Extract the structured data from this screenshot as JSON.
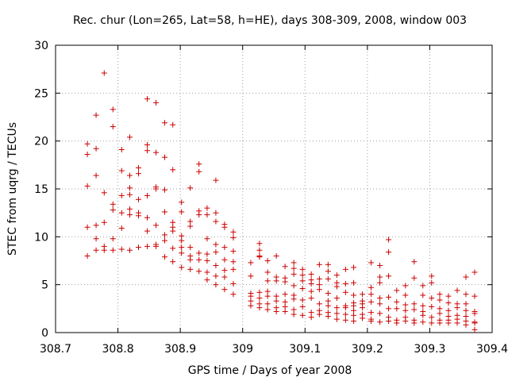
{
  "chart_data": {
    "type": "scatter",
    "title": "Rec. chur (Lon=265, Lat=58, h=HE), days 308-309, 2008, window 003",
    "xlabel": "GPS time / Days of year 2008",
    "ylabel": "STEC from uqrg / TECUs",
    "xlim": [
      308.7,
      309.4
    ],
    "ylim": [
      0,
      30
    ],
    "x_ticks": [
      "308.7",
      "308.8",
      "308.9",
      "309",
      "309.1",
      "309.2",
      "309.3",
      "309.4"
    ],
    "y_ticks": [
      "0",
      "5",
      "10",
      "15",
      "20",
      "25",
      "30"
    ],
    "grid": true,
    "marker": "plus",
    "marker_color": "#cc0000",
    "series": [
      {
        "points": [
          [
            308.751,
            19.7
          ],
          [
            308.751,
            18.6
          ],
          [
            308.751,
            15.3
          ],
          [
            308.751,
            11.0
          ],
          [
            308.751,
            8.0
          ],
          [
            308.765,
            22.7
          ],
          [
            308.765,
            19.2
          ],
          [
            308.765,
            16.4
          ],
          [
            308.765,
            11.2
          ],
          [
            308.765,
            9.8
          ],
          [
            308.765,
            8.6
          ],
          [
            308.778,
            27.1
          ],
          [
            308.778,
            14.6
          ],
          [
            308.778,
            11.5
          ],
          [
            308.778,
            9.0
          ],
          [
            308.778,
            8.6
          ],
          [
            308.792,
            23.3
          ],
          [
            308.792,
            21.5
          ],
          [
            308.792,
            13.4
          ],
          [
            308.792,
            12.8
          ],
          [
            308.792,
            9.8
          ],
          [
            308.792,
            8.6
          ],
          [
            308.806,
            19.1
          ],
          [
            308.806,
            16.9
          ],
          [
            308.806,
            14.3
          ],
          [
            308.806,
            12.5
          ],
          [
            308.806,
            10.9
          ],
          [
            308.806,
            8.7
          ],
          [
            308.819,
            20.4
          ],
          [
            308.819,
            16.4
          ],
          [
            308.819,
            15.1
          ],
          [
            308.819,
            14.4
          ],
          [
            308.819,
            12.9
          ],
          [
            308.819,
            12.3
          ],
          [
            308.819,
            8.6
          ],
          [
            308.833,
            17.2
          ],
          [
            308.833,
            16.6
          ],
          [
            308.833,
            13.9
          ],
          [
            308.833,
            12.5
          ],
          [
            308.833,
            12.2
          ],
          [
            308.833,
            8.9
          ],
          [
            308.847,
            24.4
          ],
          [
            308.847,
            19.6
          ],
          [
            308.847,
            19.0
          ],
          [
            308.847,
            14.3
          ],
          [
            308.847,
            12.0
          ],
          [
            308.847,
            10.6
          ],
          [
            308.847,
            9.0
          ],
          [
            308.861,
            24.0
          ],
          [
            308.861,
            18.8
          ],
          [
            308.861,
            15.2
          ],
          [
            308.861,
            15.0
          ],
          [
            308.861,
            11.2
          ],
          [
            308.861,
            9.2
          ],
          [
            308.861,
            9.0
          ],
          [
            308.875,
            21.9
          ],
          [
            308.875,
            18.3
          ],
          [
            308.875,
            14.9
          ],
          [
            308.875,
            12.6
          ],
          [
            308.875,
            10.2
          ],
          [
            308.875,
            9.6
          ],
          [
            308.875,
            7.9
          ],
          [
            308.888,
            21.7
          ],
          [
            308.888,
            17.0
          ],
          [
            308.888,
            11.5
          ],
          [
            308.888,
            11.0
          ],
          [
            308.888,
            10.6
          ],
          [
            308.888,
            8.8
          ],
          [
            308.888,
            7.4
          ],
          [
            308.902,
            13.6
          ],
          [
            308.902,
            12.6
          ],
          [
            308.902,
            10.1
          ],
          [
            308.902,
            9.6
          ],
          [
            308.902,
            8.9
          ],
          [
            308.902,
            8.3
          ],
          [
            308.902,
            6.8
          ],
          [
            308.916,
            15.1
          ],
          [
            308.916,
            11.6
          ],
          [
            308.916,
            11.1
          ],
          [
            308.916,
            8.9
          ],
          [
            308.916,
            8.0
          ],
          [
            308.916,
            7.6
          ],
          [
            308.916,
            6.6
          ],
          [
            308.93,
            17.6
          ],
          [
            308.93,
            16.8
          ],
          [
            308.93,
            12.7
          ],
          [
            308.93,
            12.3
          ],
          [
            308.93,
            8.3
          ],
          [
            308.93,
            7.6
          ],
          [
            308.93,
            6.4
          ],
          [
            308.943,
            13.0
          ],
          [
            308.943,
            12.3
          ],
          [
            308.943,
            9.8
          ],
          [
            308.943,
            8.2
          ],
          [
            308.943,
            7.5
          ],
          [
            308.943,
            6.3
          ],
          [
            308.943,
            5.5
          ],
          [
            308.957,
            15.9
          ],
          [
            308.957,
            12.5
          ],
          [
            308.957,
            11.6
          ],
          [
            308.957,
            9.2
          ],
          [
            308.957,
            8.4
          ],
          [
            308.957,
            7.0
          ],
          [
            308.957,
            5.9
          ],
          [
            308.957,
            5.0
          ],
          [
            308.971,
            11.3
          ],
          [
            308.971,
            11.0
          ],
          [
            308.971,
            8.9
          ],
          [
            308.971,
            7.6
          ],
          [
            308.971,
            6.5
          ],
          [
            308.971,
            5.8
          ],
          [
            308.971,
            4.5
          ],
          [
            308.985,
            10.5
          ],
          [
            308.985,
            9.9
          ],
          [
            308.985,
            8.5
          ],
          [
            308.985,
            7.4
          ],
          [
            308.985,
            6.6
          ],
          [
            308.985,
            5.1
          ],
          [
            308.985,
            4.0
          ],
          [
            309.013,
            7.3
          ],
          [
            309.013,
            5.9
          ],
          [
            309.013,
            4.1
          ],
          [
            309.013,
            3.8
          ],
          [
            309.013,
            3.3
          ],
          [
            309.013,
            2.8
          ],
          [
            309.027,
            9.3
          ],
          [
            309.027,
            8.6
          ],
          [
            309.027,
            8.0
          ],
          [
            309.027,
            7.9
          ],
          [
            309.027,
            4.2
          ],
          [
            309.027,
            3.6
          ],
          [
            309.027,
            3.0
          ],
          [
            309.027,
            2.6
          ],
          [
            309.04,
            7.5
          ],
          [
            309.04,
            6.3
          ],
          [
            309.04,
            5.4
          ],
          [
            309.04,
            4.3
          ],
          [
            309.04,
            3.8
          ],
          [
            309.04,
            3.0
          ],
          [
            309.04,
            2.4
          ],
          [
            309.054,
            8.0
          ],
          [
            309.054,
            5.8
          ],
          [
            309.054,
            5.4
          ],
          [
            309.054,
            3.8
          ],
          [
            309.054,
            3.3
          ],
          [
            309.054,
            2.6
          ],
          [
            309.054,
            2.2
          ],
          [
            309.068,
            6.9
          ],
          [
            309.068,
            5.7
          ],
          [
            309.068,
            5.3
          ],
          [
            309.068,
            4.0
          ],
          [
            309.068,
            3.2
          ],
          [
            309.068,
            2.7
          ],
          [
            309.068,
            2.2
          ],
          [
            309.082,
            7.3
          ],
          [
            309.082,
            6.7
          ],
          [
            309.082,
            6.1
          ],
          [
            309.082,
            4.9
          ],
          [
            309.082,
            3.9
          ],
          [
            309.082,
            3.5
          ],
          [
            309.082,
            2.4
          ],
          [
            309.082,
            1.9
          ],
          [
            309.096,
            6.6
          ],
          [
            309.096,
            6.0
          ],
          [
            309.096,
            5.4
          ],
          [
            309.096,
            4.6
          ],
          [
            309.096,
            3.4
          ],
          [
            309.096,
            2.7
          ],
          [
            309.096,
            1.8
          ],
          [
            309.11,
            6.1
          ],
          [
            309.11,
            5.5
          ],
          [
            309.11,
            5.1
          ],
          [
            309.11,
            4.3
          ],
          [
            309.11,
            3.6
          ],
          [
            309.11,
            2.1
          ],
          [
            309.11,
            1.6
          ],
          [
            309.123,
            7.1
          ],
          [
            309.123,
            5.6
          ],
          [
            309.123,
            5.0
          ],
          [
            309.123,
            4.5
          ],
          [
            309.123,
            3.0
          ],
          [
            309.123,
            2.3
          ],
          [
            309.123,
            1.9
          ],
          [
            309.137,
            7.1
          ],
          [
            309.137,
            6.4
          ],
          [
            309.137,
            5.6
          ],
          [
            309.137,
            4.1
          ],
          [
            309.137,
            3.3
          ],
          [
            309.137,
            2.8
          ],
          [
            309.137,
            2.1
          ],
          [
            309.137,
            1.7
          ],
          [
            309.151,
            6.0
          ],
          [
            309.151,
            5.2
          ],
          [
            309.151,
            4.8
          ],
          [
            309.151,
            3.6
          ],
          [
            309.151,
            2.6
          ],
          [
            309.151,
            2.0
          ],
          [
            309.151,
            1.4
          ],
          [
            309.165,
            6.6
          ],
          [
            309.165,
            5.1
          ],
          [
            309.165,
            4.2
          ],
          [
            309.165,
            2.8
          ],
          [
            309.165,
            2.6
          ],
          [
            309.165,
            1.9
          ],
          [
            309.165,
            1.3
          ],
          [
            309.178,
            6.8
          ],
          [
            309.178,
            5.2
          ],
          [
            309.178,
            3.9
          ],
          [
            309.178,
            3.1
          ],
          [
            309.178,
            2.8
          ],
          [
            309.178,
            2.3
          ],
          [
            309.178,
            1.8
          ],
          [
            309.178,
            1.2
          ],
          [
            309.192,
            4.0
          ],
          [
            309.192,
            3.3
          ],
          [
            309.192,
            3.0
          ],
          [
            309.192,
            2.6
          ],
          [
            309.192,
            1.9
          ],
          [
            309.192,
            1.5
          ],
          [
            309.206,
            7.3
          ],
          [
            309.206,
            4.7
          ],
          [
            309.206,
            4.0
          ],
          [
            309.206,
            3.2
          ],
          [
            309.206,
            2.1
          ],
          [
            309.206,
            1.4
          ],
          [
            309.206,
            1.2
          ],
          [
            309.22,
            7.0
          ],
          [
            309.22,
            5.8
          ],
          [
            309.22,
            5.2
          ],
          [
            309.22,
            3.6
          ],
          [
            309.22,
            3.0
          ],
          [
            309.22,
            2.0
          ],
          [
            309.22,
            1.1
          ],
          [
            309.234,
            9.7
          ],
          [
            309.234,
            8.4
          ],
          [
            309.234,
            5.9
          ],
          [
            309.234,
            3.7
          ],
          [
            309.234,
            2.5
          ],
          [
            309.234,
            1.6
          ],
          [
            309.234,
            1.2
          ],
          [
            309.247,
            4.4
          ],
          [
            309.247,
            3.2
          ],
          [
            309.247,
            2.5
          ],
          [
            309.247,
            1.3
          ],
          [
            309.247,
            1.0
          ],
          [
            309.261,
            4.9
          ],
          [
            309.261,
            3.9
          ],
          [
            309.261,
            2.9
          ],
          [
            309.261,
            2.3
          ],
          [
            309.261,
            1.6
          ],
          [
            309.261,
            1.2
          ],
          [
            309.275,
            7.4
          ],
          [
            309.275,
            5.7
          ],
          [
            309.275,
            3.0
          ],
          [
            309.275,
            2.4
          ],
          [
            309.275,
            1.3
          ],
          [
            309.275,
            1.0
          ],
          [
            309.289,
            4.9
          ],
          [
            309.289,
            3.9
          ],
          [
            309.289,
            2.8
          ],
          [
            309.289,
            2.2
          ],
          [
            309.289,
            1.8
          ],
          [
            309.289,
            1.1
          ],
          [
            309.303,
            5.9
          ],
          [
            309.303,
            5.2
          ],
          [
            309.303,
            3.6
          ],
          [
            309.303,
            2.7
          ],
          [
            309.303,
            1.6
          ],
          [
            309.303,
            1.0
          ],
          [
            309.316,
            4.0
          ],
          [
            309.316,
            3.4
          ],
          [
            309.316,
            2.5
          ],
          [
            309.316,
            2.0
          ],
          [
            309.316,
            1.3
          ],
          [
            309.316,
            1.0
          ],
          [
            309.33,
            3.8
          ],
          [
            309.33,
            3.1
          ],
          [
            309.33,
            2.3
          ],
          [
            309.33,
            1.7
          ],
          [
            309.33,
            1.3
          ],
          [
            309.33,
            1.0
          ],
          [
            309.344,
            4.4
          ],
          [
            309.344,
            3.0
          ],
          [
            309.344,
            2.6
          ],
          [
            309.344,
            1.8
          ],
          [
            309.344,
            1.4
          ],
          [
            309.344,
            1.0
          ],
          [
            309.358,
            5.8
          ],
          [
            309.358,
            4.0
          ],
          [
            309.358,
            3.0
          ],
          [
            309.358,
            2.3
          ],
          [
            309.358,
            1.7
          ],
          [
            309.358,
            1.2
          ],
          [
            309.358,
            0.8
          ],
          [
            309.372,
            6.3
          ],
          [
            309.372,
            3.8
          ],
          [
            309.372,
            2.2
          ],
          [
            309.372,
            2.0
          ],
          [
            309.372,
            1.1
          ],
          [
            309.372,
            1.0
          ],
          [
            309.372,
            0.3
          ]
        ]
      }
    ]
  }
}
